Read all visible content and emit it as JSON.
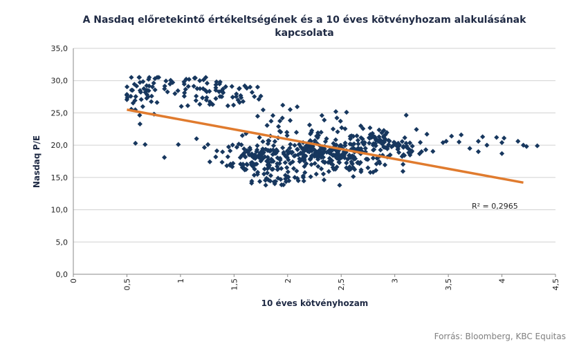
{
  "chart_data": {
    "type": "scatter",
    "title": "A Nasdaq előretekintő értékeltségének és a 10 éves kötvényhozam alakulásának",
    "title_line2": "kapcsolata",
    "xlabel": "10 éves kötvényhozam",
    "ylabel": "Nasdaq P/E",
    "xlim": [
      0,
      4.5
    ],
    "ylim": [
      0,
      35
    ],
    "x_ticks": [
      "0",
      "0,5",
      "1",
      "1,5",
      "2",
      "2,5",
      "3",
      "3,5",
      "4",
      "4,5"
    ],
    "y_ticks": [
      "0,0",
      "5,0",
      "10,0",
      "15,0",
      "20,0",
      "25,0",
      "30,0",
      "35,0"
    ],
    "grid": true,
    "marker_color": "#17375e",
    "trend_color": "#e07b2e",
    "trendline": {
      "x": [
        0.5,
        4.2
      ],
      "y": [
        25.5,
        14.2
      ]
    },
    "r_squared_label": "R² = 0,2965",
    "clusters": [
      {
        "cx": 0.65,
        "cy": 28.0,
        "sx": 0.09,
        "sy": 1.8,
        "n": 45
      },
      {
        "cx": 0.95,
        "cy": 29.2,
        "sx": 0.12,
        "sy": 0.8,
        "n": 18
      },
      {
        "cx": 1.35,
        "cy": 27.8,
        "sx": 0.18,
        "sy": 1.2,
        "n": 55
      },
      {
        "cx": 1.6,
        "cy": 18.6,
        "sx": 0.15,
        "sy": 1.4,
        "n": 50
      },
      {
        "cx": 1.85,
        "cy": 17.8,
        "sx": 0.18,
        "sy": 1.6,
        "n": 90
      },
      {
        "cx": 1.95,
        "cy": 14.6,
        "sx": 0.15,
        "sy": 0.6,
        "n": 25
      },
      {
        "cx": 1.9,
        "cy": 22.0,
        "sx": 0.2,
        "sy": 1.8,
        "n": 30
      },
      {
        "cx": 2.3,
        "cy": 18.8,
        "sx": 0.2,
        "sy": 0.9,
        "n": 130
      },
      {
        "cx": 2.6,
        "cy": 17.8,
        "sx": 0.2,
        "sy": 1.1,
        "n": 100
      },
      {
        "cx": 2.5,
        "cy": 21.8,
        "sx": 0.3,
        "sy": 1.4,
        "n": 35
      },
      {
        "cx": 2.85,
        "cy": 20.3,
        "sx": 0.15,
        "sy": 1.0,
        "n": 60
      },
      {
        "cx": 3.1,
        "cy": 19.6,
        "sx": 0.12,
        "sy": 0.9,
        "n": 25
      }
    ],
    "extra_points": [
      [
        0.58,
        20.3
      ],
      [
        0.67,
        20.1
      ],
      [
        0.85,
        18.1
      ],
      [
        0.98,
        20.1
      ],
      [
        1.15,
        21.0
      ],
      [
        1.08,
        30.2
      ],
      [
        1.18,
        30.0
      ],
      [
        1.72,
        29.0
      ],
      [
        1.75,
        27.6
      ],
      [
        2.45,
        25.2
      ],
      [
        2.55,
        25.1
      ],
      [
        2.32,
        24.6
      ],
      [
        3.3,
        21.7
      ],
      [
        3.48,
        20.6
      ],
      [
        3.53,
        21.4
      ],
      [
        3.6,
        20.5
      ],
      [
        3.62,
        21.6
      ],
      [
        3.78,
        20.6
      ],
      [
        3.82,
        21.3
      ],
      [
        3.86,
        20.0
      ],
      [
        3.95,
        21.2
      ],
      [
        4.0,
        20.4
      ],
      [
        4.02,
        21.1
      ],
      [
        4.15,
        20.6
      ],
      [
        4.2,
        20.0
      ],
      [
        4.23,
        19.8
      ],
      [
        4.33,
        19.9
      ],
      [
        4.0,
        18.7
      ],
      [
        3.7,
        19.5
      ],
      [
        3.78,
        19.0
      ],
      [
        3.45,
        20.4
      ],
      [
        3.25,
        19.0
      ],
      [
        1.6,
        29.2
      ],
      [
        1.65,
        29.0
      ],
      [
        1.48,
        29.1
      ],
      [
        1.55,
        28.8
      ]
    ]
  },
  "source": "Forrás: Bloomberg, KBC Equitas"
}
